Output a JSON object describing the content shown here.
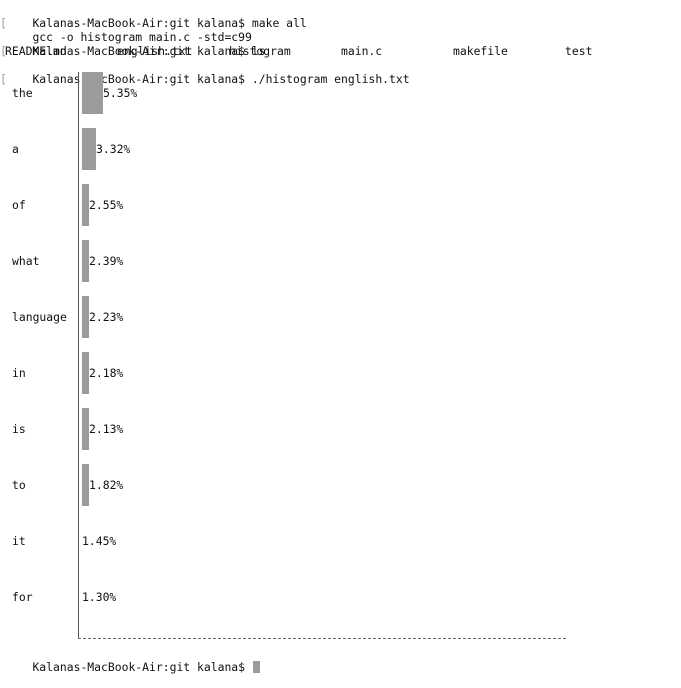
{
  "terminal": {
    "lines": [
      "Kalanas-MacBook-Air:git kalana$ make all",
      "gcc -o histogram main.c -std=c99",
      "Kalanas-MacBook-Air:git kalana$ ls",
      "",
      "Kalanas-MacBook-Air:git kalana$ ./histogram english.txt"
    ],
    "ls_output": [
      "README.md",
      "english.txt",
      "histogram",
      "main.c",
      "makefile",
      "test"
    ],
    "final_prompt": "Kalanas-MacBook-Air:git kalana$ ",
    "bracket_char": "["
  },
  "chart_data": {
    "type": "bar",
    "orientation": "horizontal",
    "categories": [
      "the",
      "a",
      "of",
      "what",
      "language",
      "in",
      "is",
      "to",
      "it",
      "for"
    ],
    "values": [
      5.35,
      3.32,
      2.55,
      2.39,
      2.23,
      2.18,
      2.13,
      1.82,
      1.45,
      1.3
    ],
    "value_labels": [
      "5.35%",
      "3.32%",
      "2.55%",
      "2.39%",
      "2.23%",
      "2.18%",
      "2.13%",
      "1.82%",
      "1.45%",
      "1.30%"
    ],
    "title": "",
    "xlabel": "",
    "ylabel": ""
  },
  "colors": {
    "background": "#ffffff",
    "text": "#111111",
    "bar_fill": "#c9c9c9",
    "axis": "#555555",
    "cursor": "#9b9b9b"
  }
}
